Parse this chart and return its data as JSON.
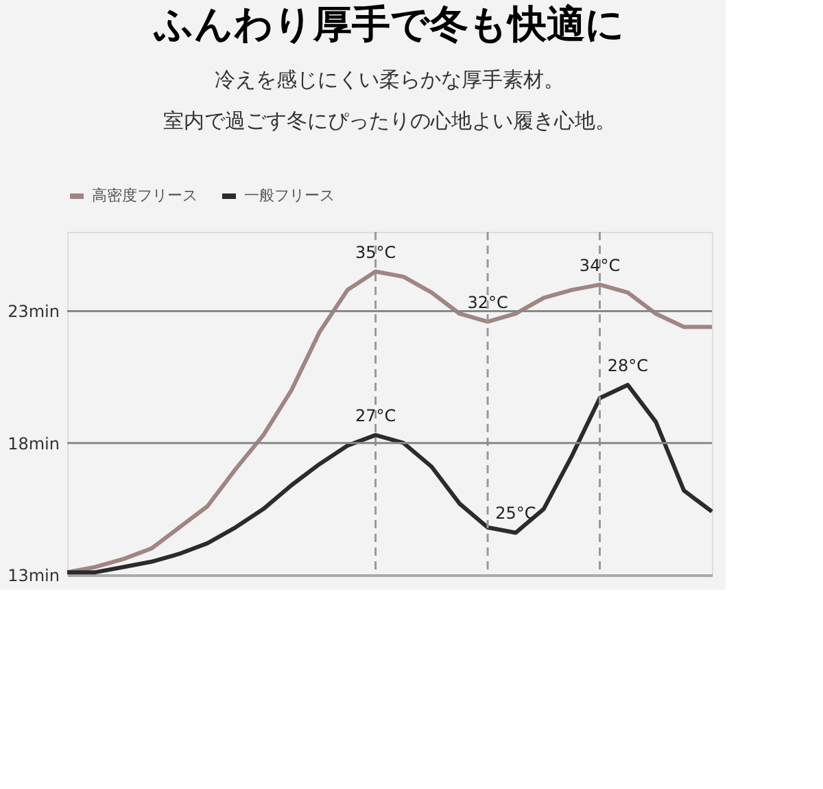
{
  "chart_data": {
    "type": "line",
    "title": "ふんわり厚手で冬も快適に",
    "subtitle": [
      "冷えを感じにくい柔らかな厚手素材。",
      "室内で過ごす冬にぴったりの心地よい履き心地。"
    ],
    "categories": [
      null,
      null,
      null,
      null,
      null,
      null,
      null,
      null,
      null,
      null,
      null,
      null,
      null,
      null,
      null,
      null,
      null,
      null,
      null,
      null,
      null,
      null,
      null,
      null
    ],
    "series": [
      {
        "name": "高密度フリース",
        "color": "#a08582",
        "values": [
          13.1,
          13.3,
          13.6,
          14.0,
          14.8,
          15.6,
          17.0,
          18.3,
          20.0,
          22.2,
          23.8,
          24.5,
          24.3,
          23.7,
          22.9,
          22.6,
          22.9,
          23.5,
          23.8,
          24.0,
          23.7,
          22.9,
          22.4,
          22.4
        ]
      },
      {
        "name": "一般フリース",
        "color": "#2b2b2b",
        "values": [
          13.1,
          13.1,
          13.3,
          13.5,
          13.8,
          14.2,
          14.8,
          15.5,
          16.4,
          17.2,
          17.9,
          18.3,
          18.0,
          17.1,
          15.7,
          14.8,
          14.6,
          15.5,
          17.5,
          19.7,
          20.2,
          18.8,
          16.2,
          15.4
        ]
      }
    ],
    "ylim": [
      13,
      26
    ],
    "yticks": [
      {
        "value": 23,
        "label": "23min"
      },
      {
        "value": 18,
        "label": "18min"
      },
      {
        "value": 13,
        "label": "13min"
      }
    ],
    "grid": "x",
    "legend": "top",
    "marker": "none",
    "line_style": "solid",
    "ref_lines": [
      {
        "axis": "y",
        "value": 23,
        "color": "#888888"
      },
      {
        "axis": "y",
        "value": 18,
        "color": "#888888"
      }
    ],
    "annotations": [
      {
        "text": "35°C",
        "y": 24.5
      },
      {
        "text": "32°C",
        "y": 22.6
      },
      {
        "text": "34°C",
        "y": 24.0
      },
      {
        "text": "27°C",
        "y": 18.3
      },
      {
        "text": "25°C",
        "y": 14.6
      },
      {
        "text": "28°C",
        "y": 20.2
      }
    ]
  }
}
